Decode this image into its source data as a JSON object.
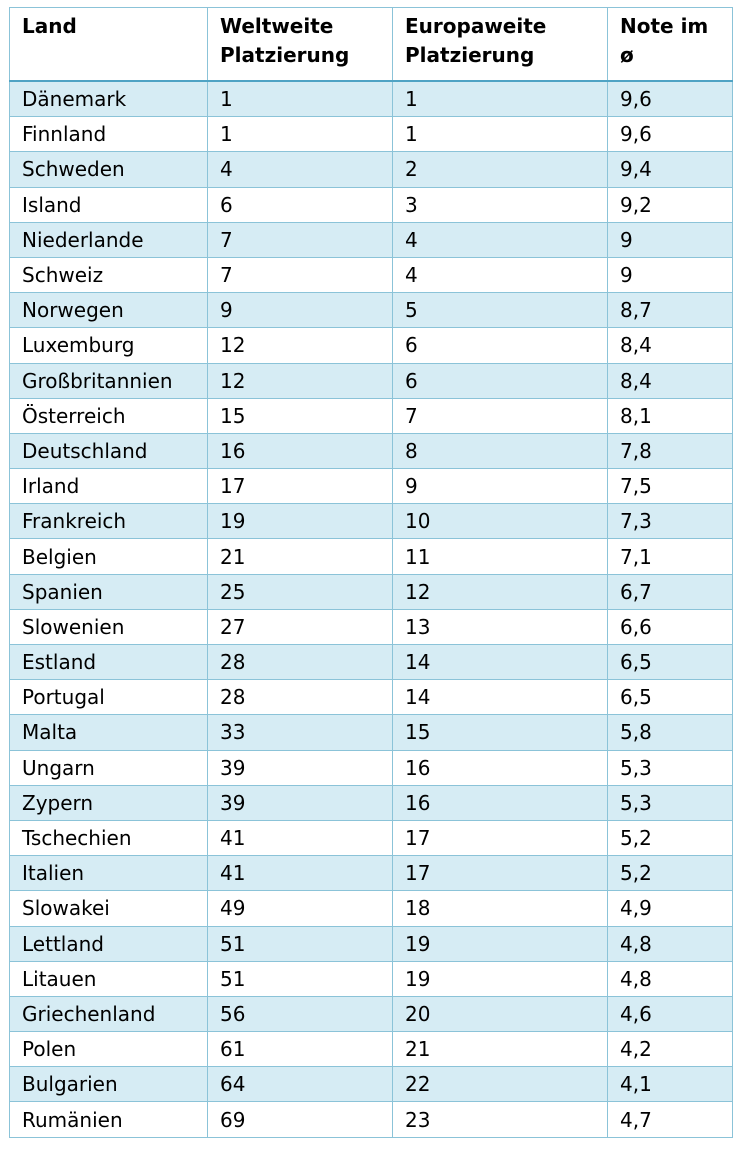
{
  "table": {
    "headers": {
      "land": "Land",
      "weltweit": "Weltweite Platzierung",
      "europaweit": "Europaweite Platzierung",
      "note": "Note im ø"
    },
    "rows": [
      {
        "land": "Dänemark",
        "welt": "1",
        "euro": "1",
        "note": "9,6"
      },
      {
        "land": "Finnland",
        "welt": "1",
        "euro": "1",
        "note": "9,6"
      },
      {
        "land": "Schweden",
        "welt": "4",
        "euro": "2",
        "note": "9,4"
      },
      {
        "land": "Island",
        "welt": "6",
        "euro": "3",
        "note": "9,2"
      },
      {
        "land": "Niederlande",
        "welt": "7",
        "euro": "4",
        "note": "9"
      },
      {
        "land": "Schweiz",
        "welt": "7",
        "euro": "4",
        "note": "9"
      },
      {
        "land": "Norwegen",
        "welt": "9",
        "euro": "5",
        "note": "8,7"
      },
      {
        "land": "Luxemburg",
        "welt": "12",
        "euro": "6",
        "note": "8,4"
      },
      {
        "land": "Großbritannien",
        "welt": "12",
        "euro": "6",
        "note": "8,4"
      },
      {
        "land": "Österreich",
        "welt": "15",
        "euro": "7",
        "note": "8,1"
      },
      {
        "land": "Deutschland",
        "welt": "16",
        "euro": "8",
        "note": "7,8"
      },
      {
        "land": "Irland",
        "welt": "17",
        "euro": "9",
        "note": "7,5"
      },
      {
        "land": "Frankreich",
        "welt": "19",
        "euro": "10",
        "note": "7,3"
      },
      {
        "land": "Belgien",
        "welt": "21",
        "euro": "11",
        "note": "7,1"
      },
      {
        "land": "Spanien",
        "welt": "25",
        "euro": "12",
        "note": "6,7"
      },
      {
        "land": "Slowenien",
        "welt": "27",
        "euro": "13",
        "note": "6,6"
      },
      {
        "land": "Estland",
        "welt": "28",
        "euro": "14",
        "note": "6,5"
      },
      {
        "land": "Portugal",
        "welt": "28",
        "euro": "14",
        "note": "6,5"
      },
      {
        "land": "Malta",
        "welt": "33",
        "euro": "15",
        "note": "5,8"
      },
      {
        "land": "Ungarn",
        "welt": "39",
        "euro": "16",
        "note": "5,3"
      },
      {
        "land": "Zypern",
        "welt": "39",
        "euro": "16",
        "note": "5,3"
      },
      {
        "land": "Tschechien",
        "welt": "41",
        "euro": "17",
        "note": "5,2"
      },
      {
        "land": "Italien",
        "welt": "41",
        "euro": "17",
        "note": "5,2"
      },
      {
        "land": "Slowakei",
        "welt": "49",
        "euro": "18",
        "note": "4,9"
      },
      {
        "land": "Lettland",
        "welt": "51",
        "euro": "19",
        "note": "4,8"
      },
      {
        "land": "Litauen",
        "welt": "51",
        "euro": "19",
        "note": "4,8"
      },
      {
        "land": "Griechenland",
        "welt": "56",
        "euro": "20",
        "note": "4,6"
      },
      {
        "land": "Polen",
        "welt": "61",
        "euro": "21",
        "note": "4,2"
      },
      {
        "land": "Bulgarien",
        "welt": "64",
        "euro": "22",
        "note": "4,1"
      },
      {
        "land": "Rumänien",
        "welt": "69",
        "euro": "23",
        "note": "4,7"
      }
    ]
  }
}
